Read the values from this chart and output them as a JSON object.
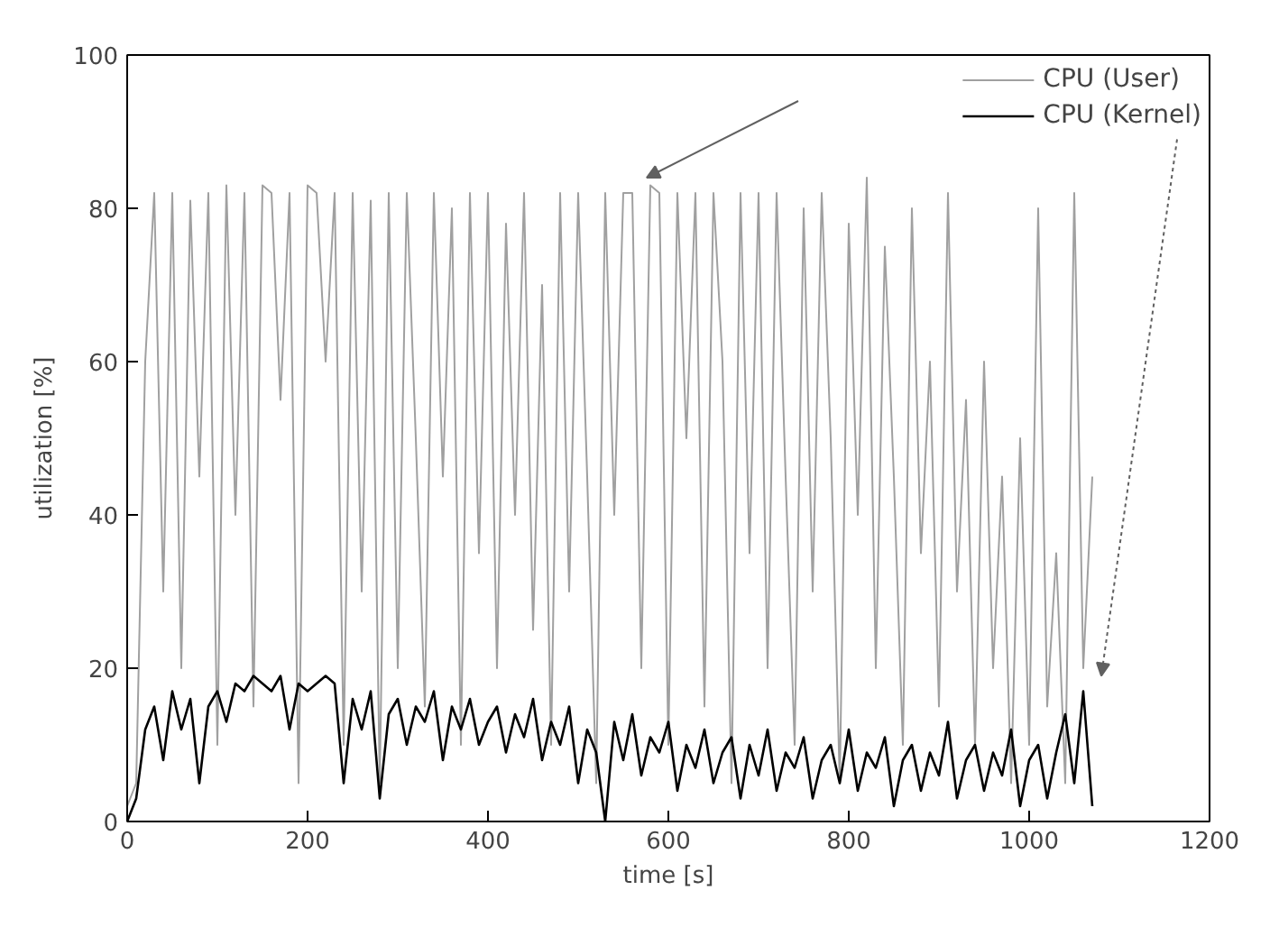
{
  "chart_data": {
    "type": "line",
    "xlabel": "time [s]",
    "ylabel": "utilization [%]",
    "x": [
      0,
      10,
      20,
      30,
      40,
      50,
      60,
      70,
      80,
      90,
      100,
      110,
      120,
      130,
      140,
      150,
      160,
      170,
      180,
      190,
      200,
      210,
      220,
      230,
      240,
      250,
      260,
      270,
      280,
      290,
      300,
      310,
      320,
      330,
      340,
      350,
      360,
      370,
      380,
      390,
      400,
      410,
      420,
      430,
      440,
      450,
      460,
      470,
      480,
      490,
      500,
      510,
      520,
      530,
      540,
      550,
      560,
      570,
      580,
      590,
      600,
      610,
      620,
      630,
      640,
      650,
      660,
      670,
      680,
      690,
      700,
      710,
      720,
      730,
      740,
      750,
      760,
      770,
      780,
      790,
      800,
      810,
      820,
      830,
      840,
      850,
      860,
      870,
      880,
      890,
      900,
      910,
      920,
      930,
      940,
      950,
      960,
      970,
      980,
      990,
      1000,
      1010,
      1020,
      1030,
      1040,
      1050,
      1060,
      1070
    ],
    "series": [
      {
        "name": "CPU (User)",
        "color": "#a0a0a0",
        "values": [
          2,
          5,
          60,
          82,
          30,
          82,
          20,
          81,
          45,
          82,
          10,
          83,
          40,
          82,
          15,
          83,
          82,
          55,
          82,
          5,
          83,
          82,
          60,
          82,
          10,
          82,
          30,
          81,
          5,
          82,
          20,
          82,
          50,
          15,
          82,
          45,
          80,
          10,
          82,
          35,
          82,
          20,
          78,
          40,
          82,
          25,
          70,
          10,
          82,
          30,
          82,
          45,
          5,
          82,
          40,
          82,
          82,
          20,
          83,
          82,
          10,
          82,
          50,
          82,
          15,
          82,
          60,
          5,
          82,
          35,
          82,
          20,
          82,
          45,
          10,
          80,
          30,
          82,
          50,
          5,
          78,
          40,
          84,
          20,
          75,
          45,
          10,
          80,
          35,
          60,
          15,
          82,
          30,
          55,
          10,
          60,
          20,
          45,
          5,
          50,
          10,
          80,
          15,
          35,
          5,
          82,
          20,
          45
        ]
      },
      {
        "name": "CPU (Kernel)",
        "color": "#000000",
        "values": [
          0,
          3,
          12,
          15,
          8,
          17,
          12,
          16,
          5,
          15,
          17,
          13,
          18,
          17,
          19,
          18,
          17,
          19,
          12,
          18,
          17,
          18,
          19,
          18,
          5,
          16,
          12,
          17,
          3,
          14,
          16,
          10,
          15,
          13,
          17,
          8,
          15,
          12,
          16,
          10,
          13,
          15,
          9,
          14,
          11,
          16,
          8,
          13,
          10,
          15,
          5,
          12,
          9,
          0,
          13,
          8,
          14,
          6,
          11,
          9,
          13,
          4,
          10,
          7,
          12,
          5,
          9,
          11,
          3,
          10,
          6,
          12,
          4,
          9,
          7,
          11,
          3,
          8,
          10,
          5,
          12,
          4,
          9,
          7,
          11,
          2,
          8,
          10,
          4,
          9,
          6,
          13,
          3,
          8,
          10,
          4,
          9,
          6,
          12,
          2,
          8,
          10,
          3,
          9,
          14,
          5,
          17,
          2
        ]
      }
    ],
    "xlim": [
      0,
      1200
    ],
    "ylim": [
      0,
      100
    ],
    "xticks": [
      0,
      200,
      400,
      600,
      800,
      1000,
      1200
    ],
    "yticks": [
      0,
      20,
      40,
      60,
      80,
      100
    ],
    "grid": false,
    "legend": "top right",
    "marker": "none",
    "line_style": "solid"
  }
}
